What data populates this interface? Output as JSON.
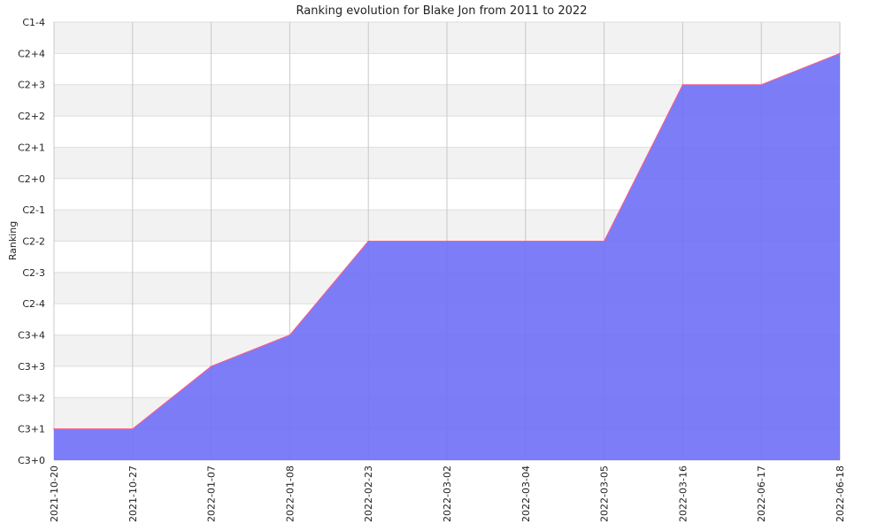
{
  "chart_data": {
    "type": "area",
    "title": "Ranking evolution for Blake Jon from 2011 to 2022",
    "xlabel": "",
    "ylabel": "Ranking",
    "x": [
      "2021-10-20",
      "2021-10-27",
      "2022-01-07",
      "2022-01-08",
      "2022-02-23",
      "2022-03-02",
      "2022-03-04",
      "2022-03-05",
      "2022-03-16",
      "2022-06-17",
      "2022-06-18"
    ],
    "y_ticks": [
      "C3+0",
      "C3+1",
      "C3+2",
      "C3+3",
      "C3+4",
      "C2-4",
      "C2-3",
      "C2-2",
      "C2-1",
      "C2+0",
      "C2+1",
      "C2+2",
      "C2+3",
      "C2+4",
      "C1-4"
    ],
    "series": [
      {
        "values": [
          "C3+1",
          "C3+1",
          "C3+3",
          "C3+4",
          "C2-2",
          "C2-2",
          "C2-2",
          "C2-2",
          "C2+3",
          "C2+3",
          "C2+4"
        ]
      }
    ],
    "grid": true,
    "legend": "none",
    "colors": {
      "fill": "#6f6ff7",
      "line": "#ff5c8a",
      "band": "#f2f2f2",
      "grid": "#c8c8c8"
    }
  }
}
